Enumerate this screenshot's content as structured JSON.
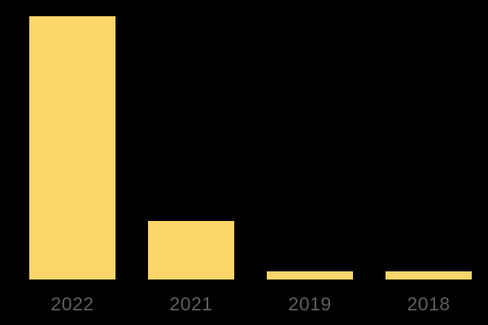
{
  "chart_data": {
    "type": "bar",
    "categories": [
      "2022",
      "2021",
      "2019",
      "2018"
    ],
    "values": [
      100,
      22.2,
      3.1,
      3.1
    ],
    "title": "",
    "xlabel": "",
    "ylabel": "",
    "ylim": [
      0,
      100
    ],
    "grid": false,
    "axes_visible": false,
    "legend": false,
    "note": "No axis scale is shown in the image; values are relative bar heights with the tallest bar (2022) normalized to 100."
  },
  "colors": {
    "background": "#000000",
    "bar": "#FDD66A",
    "label": "#5E5E5E"
  }
}
